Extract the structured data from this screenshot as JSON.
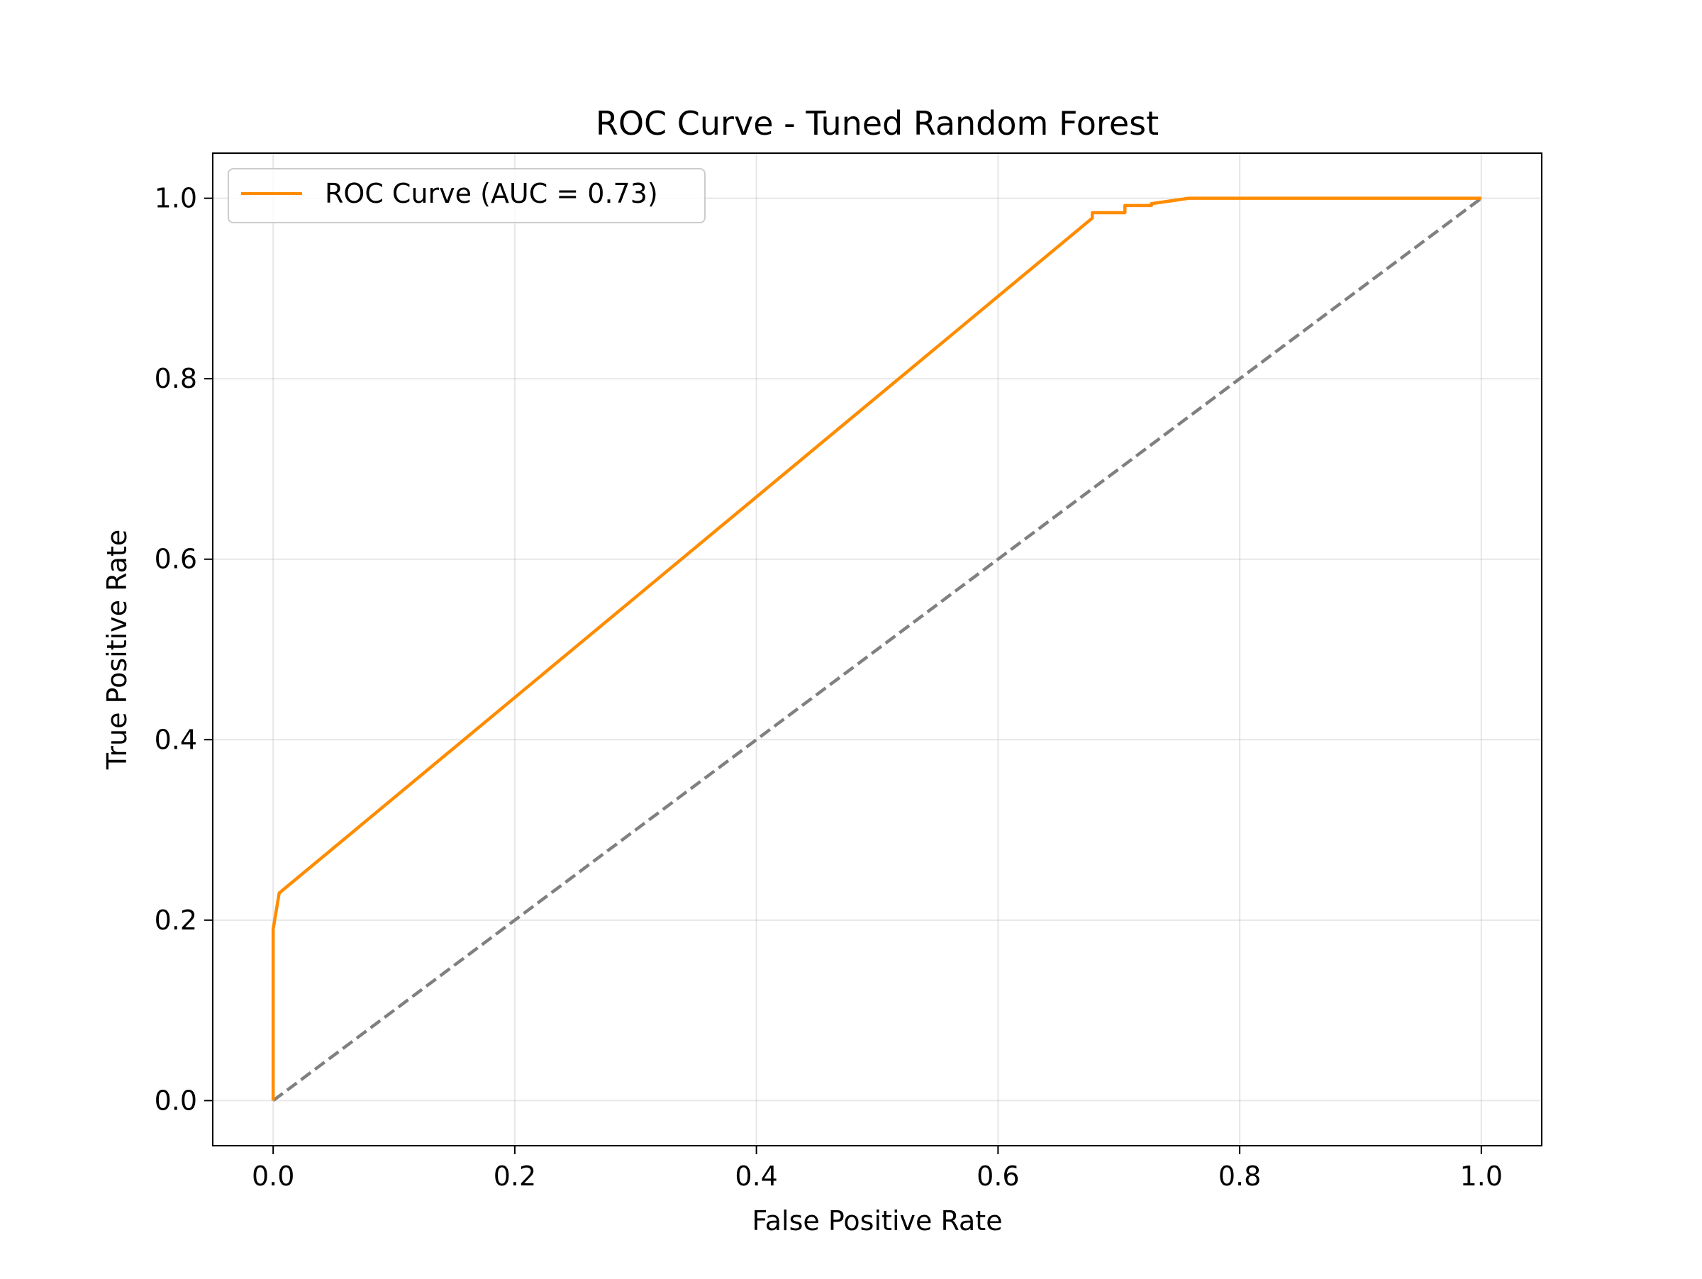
{
  "chart_data": {
    "type": "line",
    "title": "ROC Curve - Tuned Random Forest",
    "xlabel": "False Positive Rate",
    "ylabel": "True Positive Rate",
    "xlim": [
      -0.05,
      1.05
    ],
    "ylim": [
      -0.05,
      1.05
    ],
    "xticks": [
      0.0,
      0.2,
      0.4,
      0.6,
      0.8,
      1.0
    ],
    "yticks": [
      0.0,
      0.2,
      0.4,
      0.6,
      0.8,
      1.0
    ],
    "xtick_labels": [
      "0.0",
      "0.2",
      "0.4",
      "0.6",
      "0.8",
      "1.0"
    ],
    "ytick_labels": [
      "0.0",
      "0.2",
      "0.4",
      "0.6",
      "0.8",
      "1.0"
    ],
    "grid": true,
    "legend": {
      "placement": "top-left"
    },
    "series": [
      {
        "name": "ROC Curve (AUC = 0.73)",
        "color": "#ff8c00",
        "style": "solid",
        "x": [
          0.0,
          0.0,
          0.005,
          0.678,
          0.678,
          0.705,
          0.705,
          0.727,
          0.727,
          0.758,
          1.0
        ],
        "y": [
          0.0,
          0.19,
          0.23,
          0.978,
          0.984,
          0.984,
          0.992,
          0.992,
          0.994,
          1.0,
          1.0
        ]
      },
      {
        "color": "#808080",
        "style": "dashed",
        "x": [
          0.0,
          1.0
        ],
        "y": [
          0.0,
          1.0
        ]
      }
    ]
  }
}
